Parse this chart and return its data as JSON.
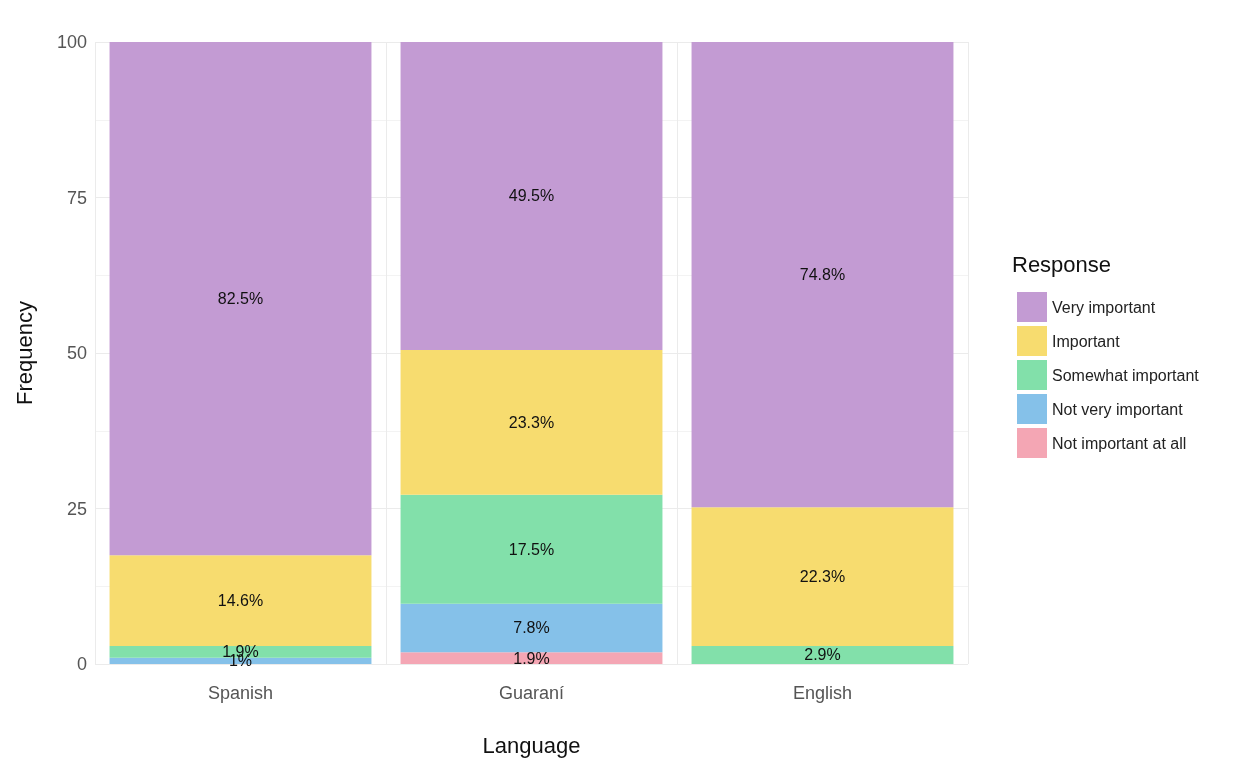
{
  "chart_data": {
    "type": "bar",
    "stacked": true,
    "xlabel": "Language",
    "ylabel": "Frequency",
    "legend_title": "Response",
    "legend": "right",
    "grid": true,
    "categories": [
      "Spanish",
      "Guaraní",
      "English"
    ],
    "ylim": [
      0,
      100
    ],
    "yticks": [
      0,
      25,
      50,
      75,
      100
    ],
    "series": [
      {
        "name": "Not important at all",
        "color": "#f4a6b4",
        "values": [
          null,
          1.9,
          null
        ],
        "value_labels": [
          null,
          "1.9%",
          null
        ]
      },
      {
        "name": "Not very important",
        "color": "#85c1e9",
        "values": [
          1,
          7.8,
          null
        ],
        "value_labels": [
          "1%",
          "7.8%",
          null
        ]
      },
      {
        "name": "Somewhat important",
        "color": "#82e0aa",
        "values": [
          1.9,
          17.5,
          2.9
        ],
        "value_labels": [
          "1.9%",
          "17.5%",
          "2.9%"
        ]
      },
      {
        "name": "Important",
        "color": "#f7dc6f",
        "values": [
          14.6,
          23.3,
          22.3
        ],
        "value_labels": [
          "14.6%",
          "23.3%",
          "22.3%"
        ]
      },
      {
        "name": "Very important",
        "color": "#c39bd3",
        "values": [
          82.5,
          49.5,
          74.8
        ],
        "value_labels": [
          "82.5%",
          "49.5%",
          "74.8%"
        ]
      }
    ]
  }
}
